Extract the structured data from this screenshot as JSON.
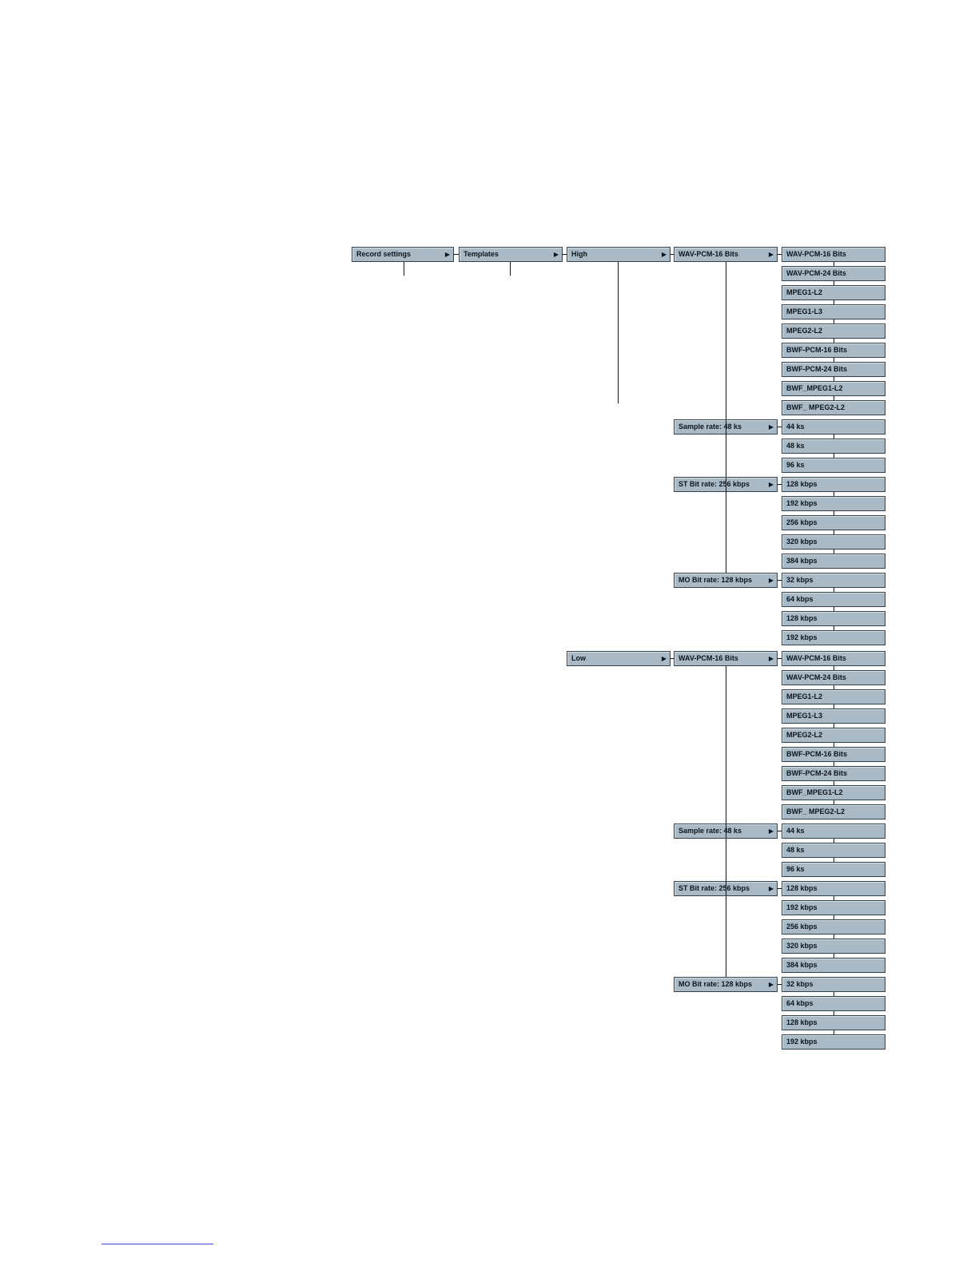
{
  "menu": {
    "root": "Record settings",
    "templates": "Templates",
    "high": {
      "label": "High",
      "format_menu": "WAV-PCM-16 Bits",
      "sample_rate_menu": "Sample rate: 48 ks",
      "st_bit_rate_menu": "ST Bit  rate: 256 kbps",
      "mo_bit_rate_menu": "MO Bit  rate: 128 kbps",
      "formats": [
        "WAV-PCM-16 Bits",
        "WAV-PCM-24 Bits",
        "MPEG1-L2",
        "MPEG1-L3",
        "MPEG2-L2",
        "BWF-PCM-16 Bits",
        "BWF-PCM-24 Bits",
        "BWF_MPEG1-L2",
        "BWF_ MPEG2-L2"
      ],
      "sample_rates": [
        "44 ks",
        "48 ks",
        "96 ks"
      ],
      "st_bit_rates": [
        "128 kbps",
        "192 kbps",
        "256 kbps",
        "320 kbps",
        "384 kbps"
      ],
      "mo_bit_rates": [
        "32 kbps",
        "64 kbps",
        "128 kbps",
        "192 kbps"
      ]
    },
    "low": {
      "label": "Low",
      "format_menu": "WAV-PCM-16 Bits",
      "sample_rate_menu": "Sample rate: 48 ks",
      "st_bit_rate_menu": "ST Bit  rate: 256 kbps",
      "mo_bit_rate_menu": "MO Bit  rate: 128 kbps",
      "formats": [
        "WAV-PCM-16 Bits",
        "WAV-PCM-24 Bits",
        "MPEG1-L2",
        "MPEG1-L3",
        "MPEG2-L2",
        "BWF-PCM-16 Bits",
        "BWF-PCM-24 Bits",
        "BWF_MPEG1-L2",
        "BWF_ MPEG2-L2"
      ],
      "sample_rates": [
        "44 ks",
        "48 ks",
        "96 ks"
      ],
      "st_bit_rates": [
        "128 kbps",
        "192 kbps",
        "256 kbps",
        "320 kbps",
        "384 kbps"
      ],
      "mo_bit_rates": [
        "32 kbps",
        "64 kbps",
        "128 kbps",
        "192 kbps"
      ]
    }
  },
  "icons": {
    "submenu_arrow": "▶"
  }
}
